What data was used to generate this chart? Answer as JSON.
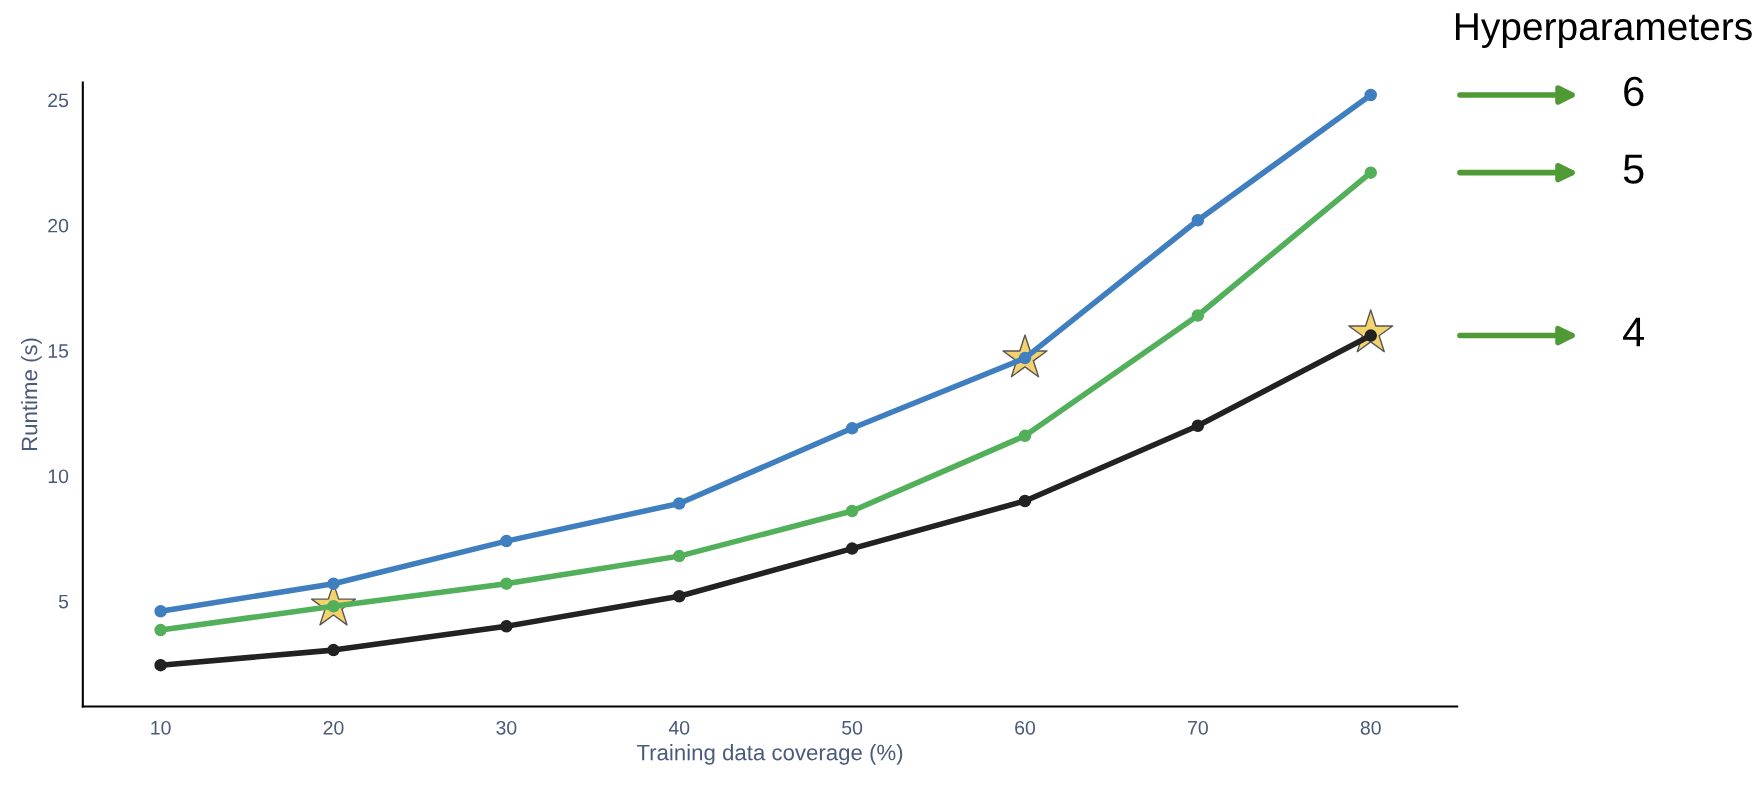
{
  "chart_data": {
    "type": "line",
    "xlabel": "Training data coverage (%)",
    "ylabel": "Runtime (s)",
    "legend_title": "Hyperparameters",
    "legend": "right",
    "grid": false,
    "marker": "circle",
    "line_style": "solid",
    "x": [
      10,
      20,
      30,
      40,
      50,
      60,
      70,
      80
    ],
    "xlim": [
      5.5,
      85
    ],
    "xticks": [
      10,
      20,
      30,
      40,
      50,
      60,
      70,
      80
    ],
    "ylim": [
      0.8,
      25.7
    ],
    "yticks": [
      5,
      10,
      15,
      20,
      25
    ],
    "series": [
      {
        "name": "6",
        "color": "#3f7fbf",
        "values": [
          4.6,
          5.7,
          7.4,
          8.9,
          11.9,
          14.7,
          20.2,
          25.2
        ]
      },
      {
        "name": "5",
        "color": "#52b05a",
        "values": [
          3.85,
          4.8,
          5.7,
          6.8,
          8.6,
          11.6,
          16.4,
          22.1
        ]
      },
      {
        "name": "4",
        "color": "#222222",
        "values": [
          2.45,
          3.05,
          4.0,
          5.2,
          7.1,
          9.0,
          12.0,
          15.6
        ]
      },
      {
        "type": "scatter",
        "marker": "star",
        "color": "#f0c030",
        "x": [
          20,
          60,
          80
        ],
        "values": [
          4.8,
          14.7,
          15.7
        ]
      }
    ]
  }
}
